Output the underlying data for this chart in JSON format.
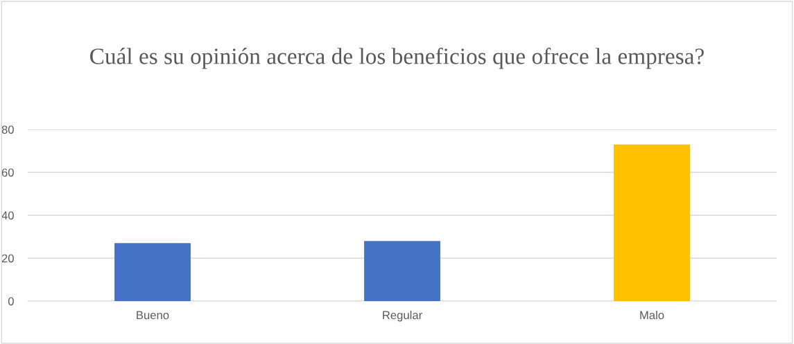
{
  "chart_data": {
    "type": "bar",
    "title": "Cuál es su opinión acerca de los beneficios que ofrece la empresa?",
    "categories": [
      "Bueno",
      "Regular",
      "Malo"
    ],
    "values": [
      27,
      28,
      73
    ],
    "colors": [
      "#4472c4",
      "#4472c4",
      "#ffc000"
    ],
    "ylim": [
      0,
      80
    ],
    "yticks": [
      0,
      20,
      40,
      60,
      80
    ],
    "grid": "y",
    "legend": false
  }
}
